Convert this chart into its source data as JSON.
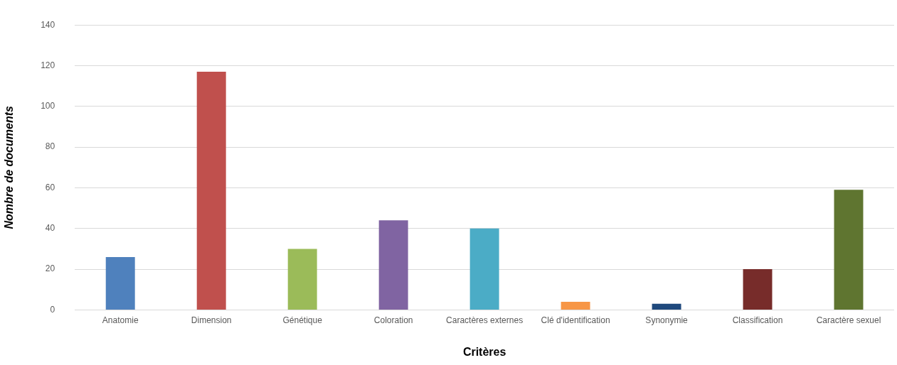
{
  "chart_data": {
    "type": "bar",
    "xlabel": "Critères",
    "ylabel": "Nombre de documents",
    "categories": [
      "Anatomie",
      "Dimension",
      "Génétique",
      "Coloration",
      "Caractères externes",
      "Clé d'identification",
      "Synonymie",
      "Classification",
      "Caractère sexuel"
    ],
    "values": [
      26,
      117,
      30,
      44,
      40,
      4,
      3,
      20,
      59
    ],
    "colors": [
      "#4f81bd",
      "#c0504d",
      "#9bbb59",
      "#8064a2",
      "#4bacc6",
      "#f79646",
      "#1f497d",
      "#772c2a",
      "#5f7530"
    ],
    "ylim": [
      0,
      140
    ],
    "yticks": [
      0,
      20,
      40,
      60,
      80,
      100,
      120,
      140
    ],
    "grid": "y",
    "legend": false
  }
}
